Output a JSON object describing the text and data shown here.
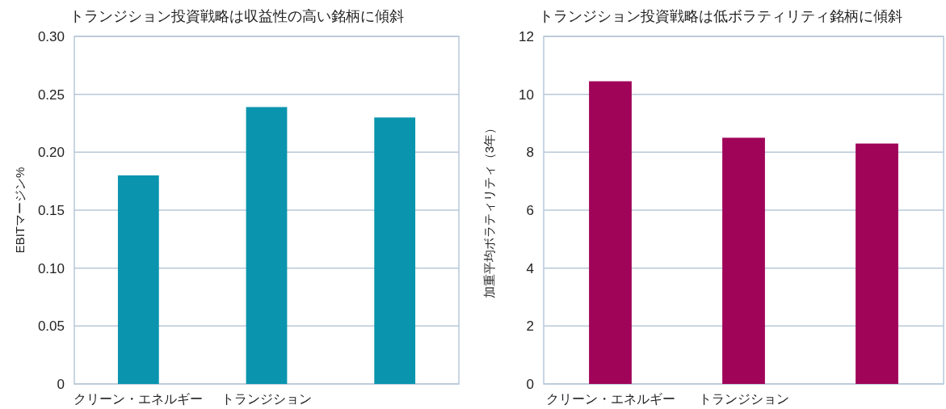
{
  "chart_data": [
    {
      "type": "bar",
      "title": "トランジション投資戦略は収益性の高い銘柄に傾斜",
      "ylabel": "EBITマージン%",
      "categories": [
        "クリーン・エネルギー",
        "トランジション",
        null
      ],
      "values": [
        0.18,
        0.239,
        0.23
      ],
      "color": "#0a94ad",
      "ylim": [
        0,
        0.3
      ],
      "yticks": [
        0,
        0.05,
        {
          "value": 0.1,
          "label": "0.10"
        },
        0.15,
        {
          "value": 0.2,
          "label": "0.20"
        },
        0.25,
        {
          "value": 0.3,
          "label": "0.30"
        }
      ],
      "grid": "y"
    },
    {
      "type": "bar",
      "title": "トランジション投資戦略は低ボラティリティ銘柄に傾斜",
      "ylabel": "加重平均ボラティリティ（3年）",
      "categories": [
        "クリーン・エネルギー",
        "トランジション",
        null
      ],
      "values": [
        10.45,
        8.5,
        8.3
      ],
      "color": "#a00459",
      "ylim": [
        0,
        12
      ],
      "yticks": [
        0,
        2,
        4,
        6,
        8,
        10,
        12
      ],
      "grid": "y"
    }
  ]
}
